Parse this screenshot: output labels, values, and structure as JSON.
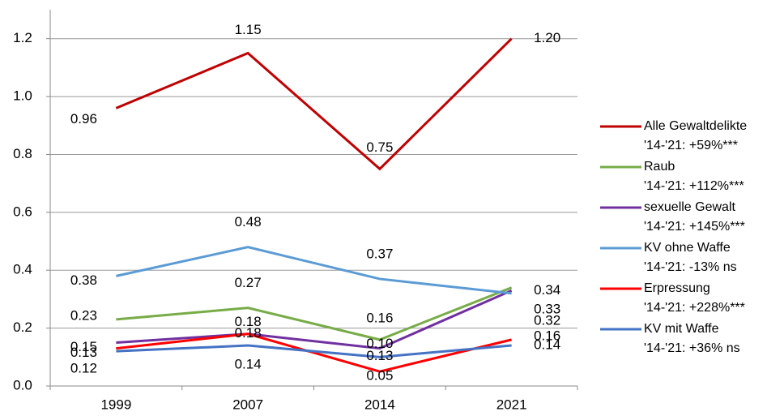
{
  "chart_data": {
    "type": "line",
    "categories": [
      "1999",
      "2007",
      "2014",
      "2021"
    ],
    "ylim": [
      0,
      1.3
    ],
    "yticks": [
      {
        "value": 0,
        "label": "0.0"
      },
      0.2,
      0.4,
      0.6,
      0.8,
      {
        "value": 1,
        "label": "1.0"
      },
      1.2
    ],
    "grid": true,
    "legend": "right",
    "series": [
      {
        "name": "Alle Gewaltdelikte",
        "change": "'14-'21: +59%***",
        "color": "#c00000",
        "values": [
          0.96,
          1.15,
          0.75,
          1.2
        ],
        "value_labels": [
          "0.96",
          "1.15",
          "0.75",
          "1.20"
        ]
      },
      {
        "name": "Raub",
        "change": "'14-'21: +112%***",
        "color": "#77ac47",
        "values": [
          0.23,
          0.27,
          0.16,
          0.34
        ],
        "value_labels": [
          "0.23",
          "0.27",
          "0.16",
          "0.34"
        ]
      },
      {
        "name": "sexuelle Gewalt",
        "change": "'14-'21: +145%***",
        "color": "#7030a0",
        "values": [
          0.15,
          0.18,
          0.13,
          0.33
        ],
        "value_labels": [
          "0.15",
          "0.18",
          "0.13",
          "0.33"
        ]
      },
      {
        "name": "KV ohne Waffe",
        "change": "'14-'21: -13% ns",
        "color": "#5b9bd5",
        "values": [
          0.38,
          0.48,
          0.37,
          0.32
        ],
        "value_labels": [
          "0.38",
          "0.48",
          "0.37",
          "0.32"
        ]
      },
      {
        "name": "Erpressung",
        "change": "'14-'21: +228%***",
        "color": "#ff0000",
        "values": [
          0.13,
          0.18,
          0.05,
          0.16
        ],
        "value_labels": [
          "0.13",
          "0.18",
          "0.05",
          "0.16"
        ]
      },
      {
        "name": "KV mit Waffe",
        "change": "'14-'21: +36% ns",
        "color": "#4472c4",
        "values": [
          0.12,
          0.14,
          0.1,
          0.14
        ],
        "value_labels": [
          "0.12",
          "0.14",
          "0.10",
          "0.14"
        ]
      }
    ]
  }
}
